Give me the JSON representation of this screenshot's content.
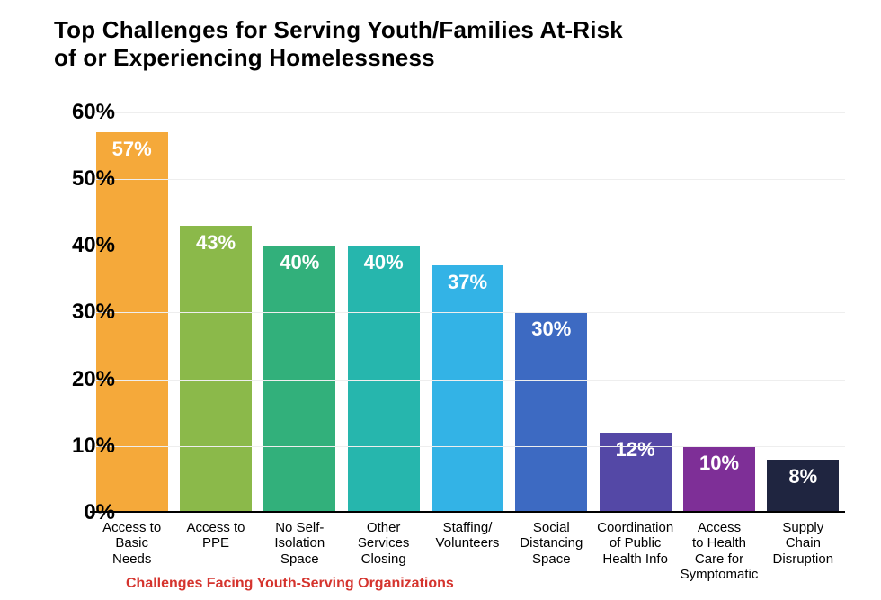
{
  "title_line1": "Top Challenges for Serving Youth/Families At-Risk",
  "title_line2": "of or Experiencing Homelessness",
  "caption": "Challenges Facing Youth-Serving Organizations",
  "caption_color": "#d5342e",
  "chart": {
    "type": "bar",
    "background_color": "#ffffff",
    "grid_color": "#eeeeee",
    "axis_color": "#000000",
    "ylim_min": 0,
    "ylim_max": 62,
    "ytick_step": 10,
    "ytick_labels": [
      "0%",
      "10%",
      "20%",
      "30%",
      "40%",
      "50%",
      "60%"
    ],
    "ytick_values": [
      0,
      10,
      20,
      30,
      40,
      50,
      60
    ],
    "ylabel_fontsize": 24,
    "title_fontsize": 26,
    "bar_label_color": "#ffffff",
    "bar_label_fontsize": 22,
    "xlabel_fontsize": 15,
    "bar_width_ratio": 0.86,
    "bars": [
      {
        "category": "Access to\nBasic\nNeeds",
        "value": 57,
        "label": "57%",
        "color": "#f5a93a"
      },
      {
        "category": "Access to\nPPE",
        "value": 43,
        "label": "43%",
        "color": "#8bb94a"
      },
      {
        "category": "No Self-\nIsolation\nSpace",
        "value": 40,
        "label": "40%",
        "color": "#32b07b"
      },
      {
        "category": "Other\nServices\nClosing",
        "value": 40,
        "label": "40%",
        "color": "#26b6ad"
      },
      {
        "category": "Staffing/\nVolunteers",
        "value": 37,
        "label": "37%",
        "color": "#33b3e6"
      },
      {
        "category": "Social\nDistancing\nSpace",
        "value": 30,
        "label": "30%",
        "color": "#3d6ac2"
      },
      {
        "category": "Coordination\nof Public\nHealth Info",
        "value": 12,
        "label": "12%",
        "color": "#5448a6"
      },
      {
        "category": "Access\nto Health\nCare for\nSymptomatic",
        "value": 10,
        "label": "10%",
        "color": "#7e2f97"
      },
      {
        "category": "Supply\nChain\nDisruption",
        "value": 8,
        "label": "8%",
        "color": "#1f2540"
      }
    ]
  }
}
